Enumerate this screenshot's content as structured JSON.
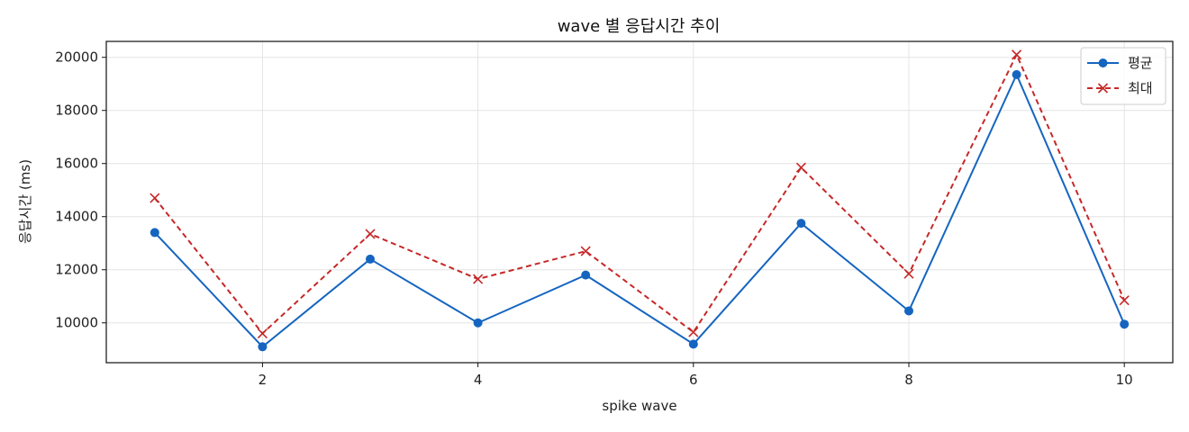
{
  "chart_data": {
    "type": "line",
    "title": "wave 별 응답시간 추이",
    "xlabel": "spike wave",
    "ylabel": "응답시간 (ms)",
    "x": [
      1,
      2,
      3,
      4,
      5,
      6,
      7,
      8,
      9,
      10
    ],
    "xlim": [
      0.55,
      10.45
    ],
    "ylim": [
      8500,
      20600
    ],
    "xticks": [
      2,
      4,
      6,
      8,
      10
    ],
    "yticks": [
      10000,
      12000,
      14000,
      16000,
      18000,
      20000
    ],
    "grid": true,
    "legend_position": "top-right",
    "series": [
      {
        "name": "평균",
        "values": [
          13400,
          9100,
          12400,
          10000,
          11800,
          9200,
          13750,
          10450,
          19350,
          9950
        ],
        "color": "#1565c0",
        "line_style": "solid",
        "marker": "circle"
      },
      {
        "name": "최대",
        "values": [
          14700,
          9600,
          13350,
          11650,
          12700,
          9650,
          15850,
          11850,
          20100,
          10850
        ],
        "color": "#c62828",
        "line_style": "dashed",
        "marker": "x"
      }
    ]
  }
}
